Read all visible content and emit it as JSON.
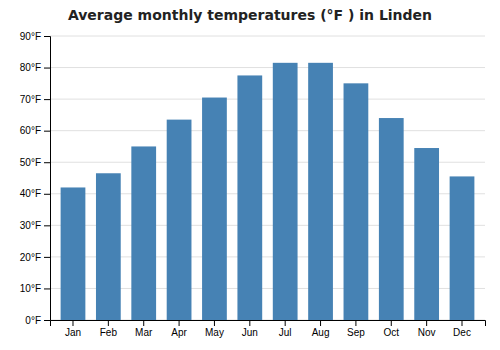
{
  "chart_data": {
    "type": "bar",
    "title": "Average monthly temperatures (°F ) in Linden",
    "categories": [
      "Jan",
      "Feb",
      "Mar",
      "Apr",
      "May",
      "Jun",
      "Jul",
      "Aug",
      "Sep",
      "Oct",
      "Nov",
      "Dec"
    ],
    "values": [
      42,
      46.5,
      55,
      63.5,
      70.5,
      77.5,
      81.5,
      81.5,
      75,
      64,
      54.5,
      45.5
    ],
    "ylim": [
      0,
      90
    ],
    "yticks": [
      {
        "value": 0,
        "label": "0°F"
      },
      {
        "value": 10,
        "label": "10°F"
      },
      {
        "value": 20,
        "label": "20°F"
      },
      {
        "value": 30,
        "label": "30°F"
      },
      {
        "value": 40,
        "label": "40°F"
      },
      {
        "value": 50,
        "label": "50°F"
      },
      {
        "value": 60,
        "label": "60°F"
      },
      {
        "value": 70,
        "label": "70°F"
      },
      {
        "value": 80,
        "label": "80°F"
      },
      {
        "value": 90,
        "label": "90°F"
      }
    ],
    "grid": true
  }
}
